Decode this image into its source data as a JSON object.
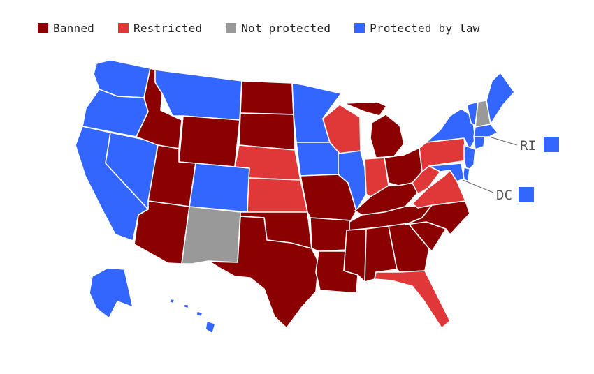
{
  "legend": [
    {
      "key": "banned",
      "label": "Banned",
      "color": "#8b0000"
    },
    {
      "key": "restricted",
      "label": "Restricted",
      "color": "#e03838"
    },
    {
      "key": "not_protected",
      "label": "Not protected",
      "color": "#999999"
    },
    {
      "key": "protected",
      "label": "Protected by law",
      "color": "#3366ff"
    }
  ],
  "callouts": {
    "ri": {
      "label": "RI",
      "status": "protected"
    },
    "dc": {
      "label": "DC",
      "status": "protected"
    }
  },
  "states": {
    "WA": "protected",
    "OR": "protected",
    "CA": "protected",
    "NV": "protected",
    "ID": "banned",
    "MT": "protected",
    "WY": "banned",
    "UT": "banned",
    "AZ": "banned",
    "CO": "protected",
    "NM": "not_protected",
    "ND": "banned",
    "SD": "banned",
    "NE": "restricted",
    "KS": "restricted",
    "OK": "banned",
    "TX": "banned",
    "MN": "protected",
    "IA": "protected",
    "MO": "banned",
    "AR": "banned",
    "LA": "banned",
    "WI": "restricted",
    "IL": "protected",
    "MI": "banned",
    "IN": "restricted",
    "OH": "banned",
    "KY": "banned",
    "TN": "banned",
    "MS": "banned",
    "AL": "banned",
    "GA": "banned",
    "FL": "restricted",
    "SC": "banned",
    "NC": "banned",
    "VA": "restricted",
    "WV": "restricted",
    "PA": "restricted",
    "NY": "protected",
    "VT": "protected",
    "NH": "not_protected",
    "ME": "protected",
    "MA": "protected",
    "CT": "protected",
    "NJ": "protected",
    "DE": "protected",
    "MD": "protected",
    "AK": "protected",
    "HI": "protected"
  }
}
